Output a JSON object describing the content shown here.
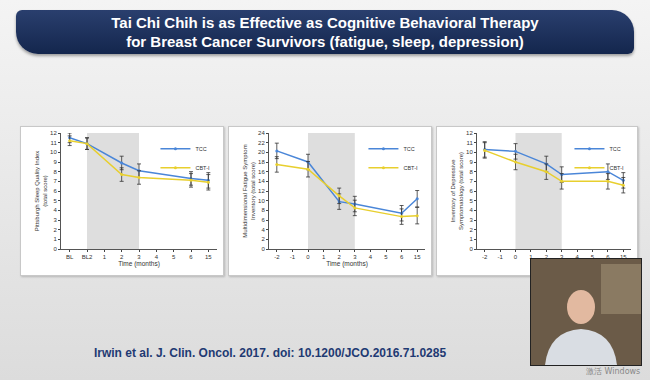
{
  "slide": {
    "title": [
      "Tai Chi Chih is as Effective as Cognitive Behavioral Therapy",
      "for Breast Cancer Survivors  (fatigue, sleep, depression)"
    ],
    "citation": "Irwin et al. J. Clin. Oncol. 2017. doi: 10.1200/JCO.2016.71.0285",
    "watermark": "激活 Windows"
  },
  "chart_data": [
    {
      "type": "line",
      "xlabel": "Time (months)",
      "ylabel": [
        "Pittsburgh Sleep Quality Index",
        "(total score)"
      ],
      "categories": [
        "BL",
        "BL2",
        "1",
        "2",
        "3",
        "4",
        "5",
        "6",
        "15"
      ],
      "ylim": [
        0,
        12
      ],
      "yticks": [
        0,
        1,
        2,
        3,
        4,
        5,
        6,
        7,
        8,
        9,
        10,
        11,
        12
      ],
      "legend": "upper right",
      "intervention": {
        "from": "BL2",
        "to": "3"
      },
      "series": [
        {
          "name": "TCC",
          "color": "#4a86d8",
          "marker": "circle",
          "values": [
            11.5,
            10.9,
            null,
            8.9,
            8.1,
            null,
            null,
            7.3,
            7.1
          ],
          "errors": [
            0.5,
            0.6,
            null,
            0.7,
            0.7,
            null,
            null,
            0.7,
            0.8
          ]
        },
        {
          "name": "CBT-I",
          "color": "#e8cf2e",
          "marker": "circle",
          "values": [
            11.2,
            10.9,
            null,
            7.7,
            7.4,
            null,
            null,
            7.1,
            6.9
          ],
          "errors": [
            0.5,
            0.6,
            null,
            0.7,
            0.7,
            null,
            null,
            0.7,
            0.8
          ]
        }
      ]
    },
    {
      "type": "line",
      "xlabel": "Time (months)",
      "ylabel": [
        "Multidimensional Fatigue Symptom",
        "Inventory (total score)"
      ],
      "categories": [
        "-2",
        "-1",
        "0",
        "1",
        "2",
        "3",
        "4",
        "5",
        "6",
        "15"
      ],
      "ylim": [
        0,
        24
      ],
      "yticks": [
        0,
        2,
        4,
        6,
        8,
        10,
        12,
        14,
        16,
        18,
        20,
        22,
        24
      ],
      "legend": "upper right",
      "intervention": {
        "from": "0",
        "to": "3"
      },
      "series": [
        {
          "name": "TCC",
          "color": "#4a86d8",
          "marker": "circle",
          "values": [
            20.3,
            null,
            18.0,
            null,
            9.8,
            9.3,
            null,
            null,
            7.4,
            10.4
          ],
          "errors": [
            1.6,
            null,
            1.6,
            null,
            1.6,
            1.6,
            null,
            null,
            1.6,
            1.7
          ]
        },
        {
          "name": "CBT-I",
          "color": "#e8cf2e",
          "marker": "circle",
          "values": [
            17.5,
            null,
            16.5,
            null,
            11.0,
            8.5,
            null,
            null,
            6.7,
            6.9
          ],
          "errors": [
            1.6,
            null,
            1.6,
            null,
            1.6,
            1.6,
            null,
            null,
            1.6,
            1.7
          ]
        }
      ]
    },
    {
      "type": "line",
      "xlabel": "Time (months)",
      "ylabel": [
        "Inventory of Depressive",
        "Symptomatology (total score)"
      ],
      "categories": [
        "-2",
        "-1",
        "0",
        "1",
        "2",
        "3",
        "4",
        "5",
        "6",
        "15"
      ],
      "ylim": [
        0,
        12
      ],
      "yticks": [
        0,
        1,
        2,
        3,
        4,
        5,
        6,
        7,
        8,
        9,
        10,
        11,
        12
      ],
      "legend": "upper right",
      "intervention": {
        "from": "0",
        "to": "3"
      },
      "series": [
        {
          "name": "TCC",
          "color": "#4a86d8",
          "marker": "circle",
          "values": [
            10.3,
            null,
            10.1,
            null,
            8.8,
            7.7,
            null,
            null,
            8.0,
            7.1
          ],
          "errors": [
            0.8,
            null,
            0.8,
            null,
            0.8,
            0.8,
            null,
            null,
            0.8,
            0.8
          ]
        },
        {
          "name": "CBT-I",
          "color": "#e8cf2e",
          "marker": "circle",
          "values": [
            10.2,
            null,
            9.0,
            null,
            8.0,
            7.0,
            null,
            null,
            7.0,
            6.6
          ],
          "errors": [
            0.8,
            null,
            0.8,
            null,
            0.8,
            0.8,
            null,
            null,
            0.8,
            0.8
          ]
        }
      ]
    }
  ]
}
